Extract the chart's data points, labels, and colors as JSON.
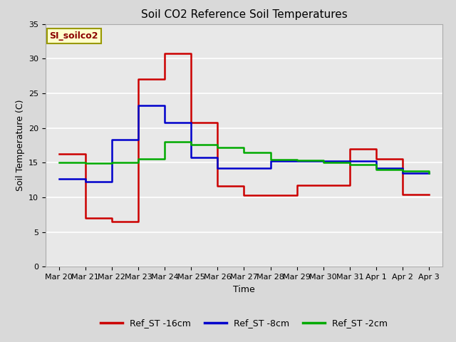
{
  "title": "Soil CO2 Reference Soil Temperatures",
  "ylabel": "Soil Temperature (C)",
  "xlabel": "Time",
  "annotation_label": "SI_soilco2",
  "ylim": [
    0,
    35
  ],
  "yticks": [
    0,
    5,
    10,
    15,
    20,
    25,
    30,
    35
  ],
  "x_labels": [
    "Mar 20",
    "Mar 21",
    "Mar 22",
    "Mar 23",
    "Mar 24",
    "Mar 25",
    "Mar 26",
    "Mar 27",
    "Mar 28",
    "Mar 29",
    "Mar 30",
    "Mar 31",
    "Apr 1",
    "Apr 2",
    "Apr 3"
  ],
  "x_values": [
    0,
    1,
    2,
    3,
    4,
    5,
    6,
    7,
    8,
    9,
    10,
    11,
    12,
    13,
    14
  ],
  "red_y": [
    16.3,
    7.0,
    6.5,
    27.0,
    30.7,
    20.8,
    11.6,
    10.3,
    10.3,
    11.7,
    11.7,
    17.0,
    15.6,
    10.4,
    10.4
  ],
  "blue_y": [
    12.7,
    12.3,
    18.3,
    23.2,
    20.8,
    15.8,
    14.2,
    14.2,
    15.2,
    15.2,
    15.2,
    15.2,
    14.2,
    13.5,
    13.5
  ],
  "green_y": [
    15.0,
    14.9,
    15.0,
    15.6,
    18.0,
    17.6,
    17.2,
    16.5,
    15.4,
    15.3,
    15.0,
    14.7,
    14.0,
    13.8,
    13.5
  ],
  "red_color": "#cc0000",
  "blue_color": "#0000cc",
  "green_color": "#00aa00",
  "fig_bg_color": "#d9d9d9",
  "plot_bg_color": "#e8e8e8",
  "grid_color": "#ffffff",
  "legend_labels": [
    "Ref_ST -16cm",
    "Ref_ST -8cm",
    "Ref_ST -2cm"
  ],
  "linewidth": 1.8,
  "title_fontsize": 11,
  "axis_label_fontsize": 9,
  "tick_fontsize": 8,
  "annotation_fontsize": 9,
  "legend_fontsize": 9
}
